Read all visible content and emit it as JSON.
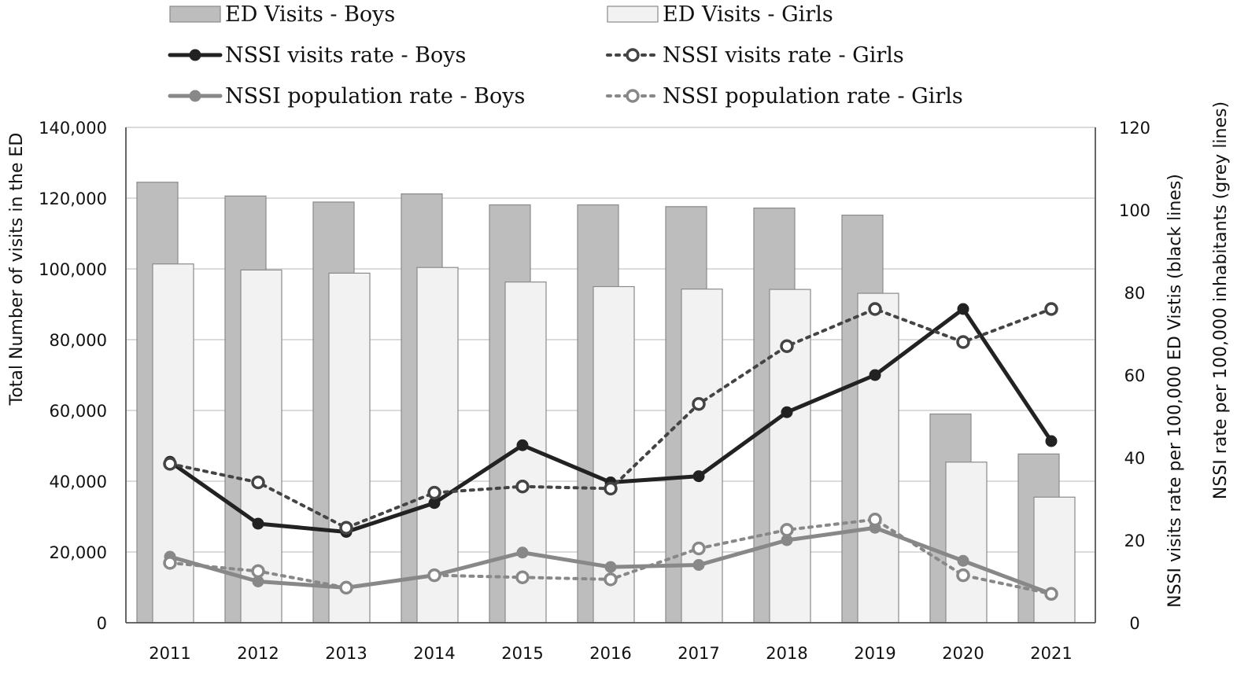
{
  "chart_data": {
    "type": "bar",
    "categories": [
      "2011",
      "2012",
      "2013",
      "2014",
      "2015",
      "2016",
      "2017",
      "2018",
      "2019",
      "2020",
      "2021"
    ],
    "series": [
      {
        "name": "ED Visits - Boys",
        "kind": "bar",
        "axis": "left",
        "color": "#bdbdbd",
        "values": [
          124500,
          120600,
          118900,
          121200,
          118100,
          118100,
          117600,
          117200,
          115200,
          59000,
          47700
        ]
      },
      {
        "name": "ED Visits - Girls",
        "kind": "bar",
        "axis": "left",
        "color": "#f2f2f2",
        "values": [
          101400,
          99700,
          98800,
          100400,
          96300,
          95000,
          94300,
          94200,
          93100,
          45400,
          35500
        ]
      },
      {
        "name": "NSSI visits rate - Boys",
        "kind": "line",
        "axis": "right",
        "color": "#222222",
        "style": "solid-filled",
        "values": [
          39,
          24,
          22,
          29,
          43,
          34,
          35.5,
          51,
          60,
          76,
          44
        ]
      },
      {
        "name": "NSSI visits rate - Girls",
        "kind": "line",
        "axis": "right",
        "color": "#444444",
        "style": "dotted-open",
        "values": [
          38.5,
          34,
          23,
          31.5,
          33,
          32.5,
          53,
          67,
          76,
          68,
          76
        ]
      },
      {
        "name": "NSSI population rate - Boys",
        "kind": "line",
        "axis": "right",
        "color": "#888888",
        "style": "solid-filled",
        "values": [
          16,
          10,
          8.5,
          11.5,
          17,
          13.5,
          14,
          20,
          23,
          15,
          7
        ]
      },
      {
        "name": "NSSI population rate - Girls",
        "kind": "line",
        "axis": "right",
        "color": "#888888",
        "style": "dotted-open",
        "values": [
          14.5,
          12.5,
          8.5,
          11.5,
          11,
          10.5,
          18,
          22.5,
          25,
          11.5,
          7
        ]
      }
    ],
    "ylabel": "Total Number of visits in the ED",
    "ylabel_right_1": "NSSI visits rate  per 100,000 ED Vistis (black lines)",
    "ylabel_right_2": "NSSI rate per 100,000 inhabitants (grey lines)",
    "ylim": [
      0,
      140000
    ],
    "ylim_right": [
      0,
      120
    ],
    "yticks": [
      "0",
      "20,000",
      "40,000",
      "60,000",
      "80,000",
      "100,000",
      "120,000",
      "140,000"
    ],
    "yticks_right": [
      "0",
      "20",
      "40",
      "60",
      "80",
      "100",
      "120"
    ],
    "grid": true,
    "legend_position": "top"
  }
}
